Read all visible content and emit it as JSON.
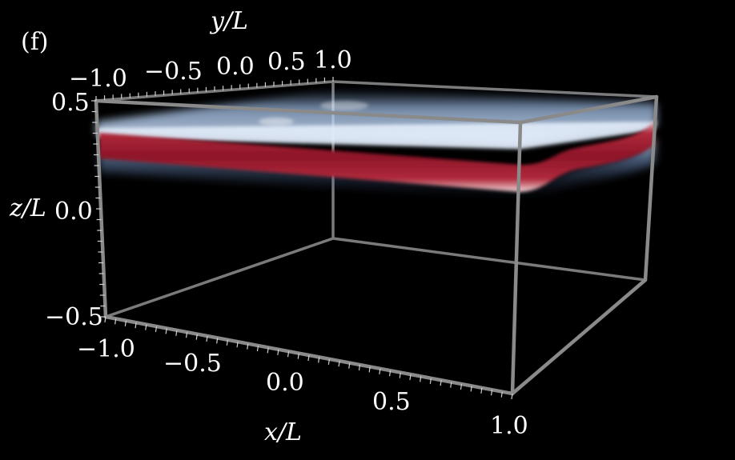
{
  "panel_label": "(f)",
  "axes": {
    "x": {
      "label": "x/L",
      "ticks": [
        "−1.0",
        "−0.5",
        "0.0",
        "0.5",
        "1.0"
      ],
      "range": [
        -1.0,
        1.0
      ]
    },
    "y": {
      "label": "y/L",
      "ticks": [
        "−1.0",
        "−0.5",
        "0.0",
        "0.5",
        "1.0"
      ],
      "range": [
        -1.0,
        1.0
      ]
    },
    "z": {
      "label": "z/L",
      "ticks": [
        "0.5",
        "0.0",
        "−0.5"
      ],
      "range": [
        -0.5,
        0.5
      ]
    }
  },
  "colors": {
    "background": "#000000",
    "box_edges": "#8a8a8a",
    "interface_red": "#9b1b30",
    "upper_light_blue": "#bcd6f5",
    "tick_labels": "#ffffff"
  },
  "surface": {
    "description_visual": "volume render of a thin layer near z/L≈0.3 with an upward bend at the x/L=1 end",
    "layer_center_z": 0.3
  }
}
